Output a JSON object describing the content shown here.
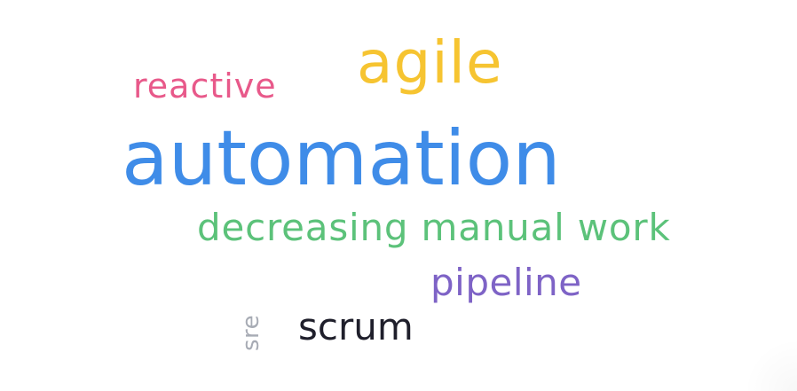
{
  "word_cloud": {
    "words": [
      {
        "id": "reactive",
        "text": "reactive",
        "color": "#E8598A"
      },
      {
        "id": "agile",
        "text": "agile",
        "color": "#F6C431"
      },
      {
        "id": "automation",
        "text": "automation",
        "color": "#3F8CE8"
      },
      {
        "id": "decreasing",
        "text": "decreasing manual work",
        "color": "#5CC27A"
      },
      {
        "id": "pipeline",
        "text": "pipeline",
        "color": "#7E63C6"
      },
      {
        "id": "scrum",
        "text": "scrum",
        "color": "#1F1F2B"
      },
      {
        "id": "sre",
        "text": "sre",
        "color": "#A7ABB4"
      }
    ]
  }
}
